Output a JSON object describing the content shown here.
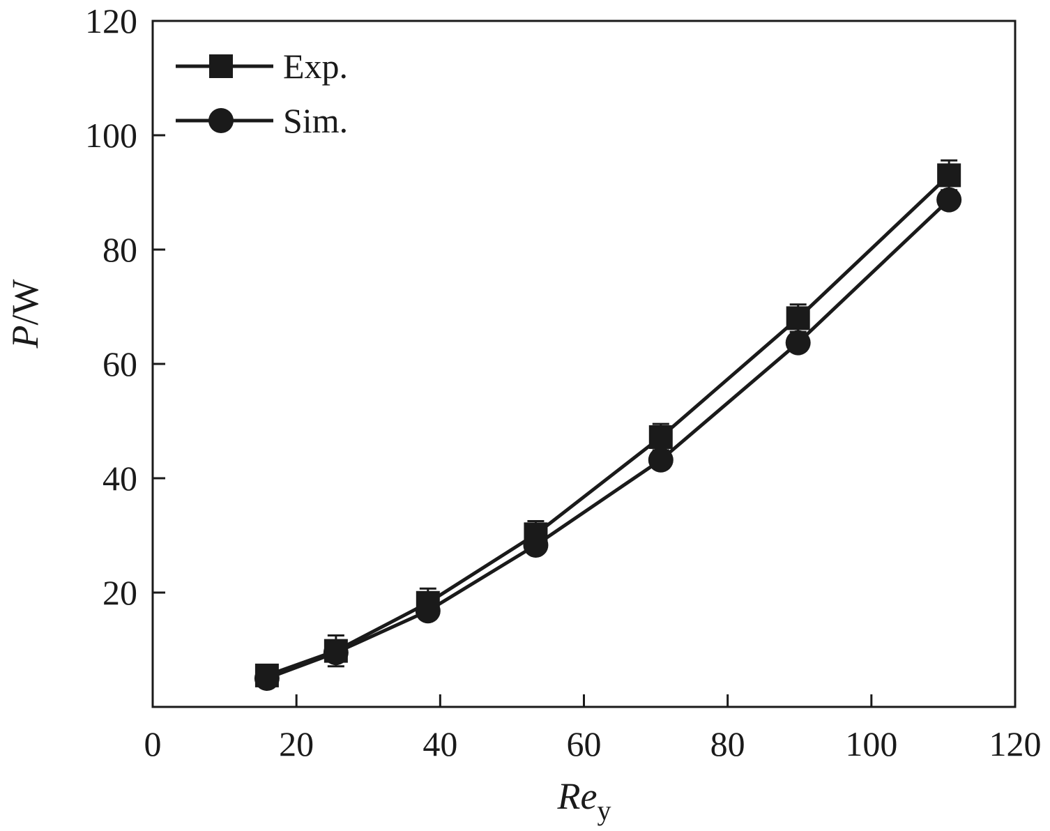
{
  "chart_data": {
    "type": "line",
    "title": "",
    "xlabel": {
      "main": "Re",
      "sub": "y"
    },
    "ylabel": {
      "main": "P",
      "rest": "/W"
    },
    "xlim": [
      0,
      120
    ],
    "ylim": [
      0,
      120
    ],
    "x_ticks": [
      0,
      20,
      40,
      60,
      80,
      100,
      120
    ],
    "y_ticks": [
      20,
      40,
      60,
      80,
      100,
      120
    ],
    "grid": false,
    "legend": {
      "placement": "top-left"
    },
    "series": [
      {
        "name": "Exp.",
        "marker": "square",
        "x": [
          15.9,
          25.5,
          38.3,
          53.3,
          70.7,
          89.8,
          110.8
        ],
        "y": [
          5.5,
          9.8,
          18.2,
          30.2,
          47.2,
          68.0,
          93.0
        ],
        "err": [
          0.5,
          2.7,
          2.5,
          2.3,
          2.3,
          2.4,
          2.6
        ]
      },
      {
        "name": "Sim.",
        "marker": "circle",
        "x": [
          15.9,
          25.5,
          38.3,
          53.3,
          70.7,
          89.8,
          110.8
        ],
        "y": [
          5.0,
          9.5,
          16.8,
          28.3,
          43.2,
          63.7,
          88.7
        ]
      }
    ],
    "colors": {
      "line": "#1a1a1a",
      "axis": "#1a1a1a"
    }
  }
}
